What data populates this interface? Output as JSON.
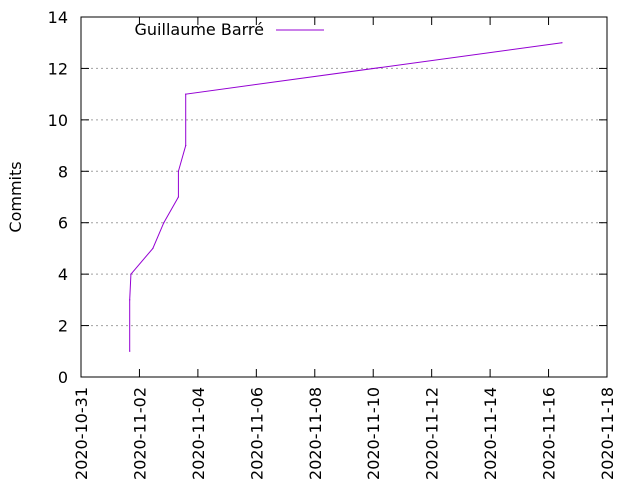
{
  "chart_data": {
    "type": "line",
    "title": "",
    "xlabel": "",
    "ylabel": "Commits",
    "x_type": "date",
    "xlim": [
      "2020-10-31",
      "2020-11-18"
    ],
    "ylim": [
      0,
      14
    ],
    "x_ticks": [
      "2020-10-31",
      "2020-11-02",
      "2020-11-04",
      "2020-11-06",
      "2020-11-08",
      "2020-11-10",
      "2020-11-12",
      "2020-11-14",
      "2020-11-16",
      "2020-11-18"
    ],
    "y_ticks": [
      0,
      2,
      4,
      6,
      8,
      10,
      12,
      14
    ],
    "grid": "horizontal dotted at y ticks",
    "legend": "top-left",
    "series": [
      {
        "name": "Guillaume Barré",
        "color": "#9400d3",
        "points": [
          {
            "x": "2020-11-01 16:00",
            "y": 1
          },
          {
            "x": "2020-11-01 16:00",
            "y": 3
          },
          {
            "x": "2020-11-01 17:00",
            "y": 4
          },
          {
            "x": "2020-11-02 11:00",
            "y": 5
          },
          {
            "x": "2020-11-02 20:00",
            "y": 6
          },
          {
            "x": "2020-11-03 08:00",
            "y": 7
          },
          {
            "x": "2020-11-03 08:00",
            "y": 8
          },
          {
            "x": "2020-11-03 14:00",
            "y": 9
          },
          {
            "x": "2020-11-03 14:00",
            "y": 11
          },
          {
            "x": "2020-11-16 11:00",
            "y": 13
          }
        ]
      }
    ]
  }
}
